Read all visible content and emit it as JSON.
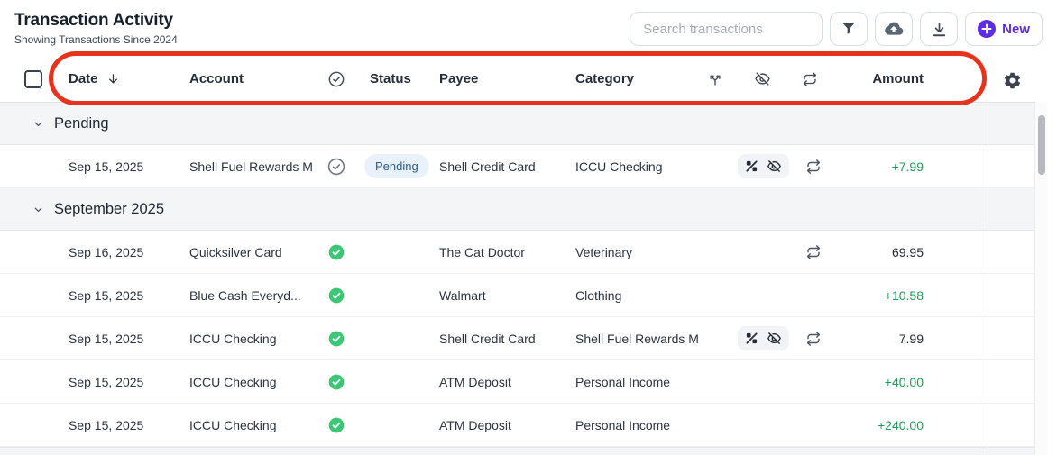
{
  "page": {
    "title": "Transaction Activity",
    "subtitle": "Showing Transactions Since 2024"
  },
  "toolbar": {
    "search_placeholder": "Search transactions",
    "new_label": "New",
    "icon_buttons": [
      "filter-icon",
      "cloud-upload-icon",
      "download-icon"
    ]
  },
  "table": {
    "columns": {
      "date": "Date",
      "account": "Account",
      "status": "Status",
      "payee": "Payee",
      "category": "Category",
      "amount": "Amount"
    },
    "header_icon_columns": [
      "cleared-check-icon",
      "split-icon",
      "eye-off-icon",
      "recurring-icon"
    ],
    "sort": {
      "column": "Date",
      "direction": "descending"
    },
    "groups": [
      {
        "label": "Pending",
        "rows": [
          {
            "date": "Sep 15, 2025",
            "account": "Shell Fuel Rewards M",
            "cleared": false,
            "status": "Pending",
            "payee": "Shell Credit Card",
            "category": "ICCU Checking",
            "badges": true,
            "recurring": true,
            "amount": "+7.99"
          }
        ]
      },
      {
        "label": "September 2025",
        "rows": [
          {
            "date": "Sep 16, 2025",
            "account": "Quicksilver Card",
            "cleared": true,
            "status": "",
            "payee": "The Cat Doctor",
            "category": "Veterinary",
            "badges": false,
            "recurring": true,
            "amount": "69.95"
          },
          {
            "date": "Sep 15, 2025",
            "account": "Blue Cash Everyd...",
            "cleared": true,
            "status": "",
            "payee": "Walmart",
            "category": "Clothing",
            "badges": false,
            "recurring": false,
            "amount": "+10.58"
          },
          {
            "date": "Sep 15, 2025",
            "account": "ICCU Checking",
            "cleared": true,
            "status": "",
            "payee": "Shell Credit Card",
            "category": "Shell Fuel Rewards M",
            "badges": true,
            "recurring": true,
            "amount": "7.99"
          },
          {
            "date": "Sep 15, 2025",
            "account": "ICCU Checking",
            "cleared": true,
            "status": "",
            "payee": "ATM Deposit",
            "category": "Personal Income",
            "badges": false,
            "recurring": false,
            "amount": "+40.00"
          },
          {
            "date": "Sep 15, 2025",
            "account": "ICCU Checking",
            "cleared": true,
            "status": "",
            "payee": "ATM Deposit",
            "category": "Personal Income",
            "badges": false,
            "recurring": false,
            "amount": "+240.00"
          }
        ]
      }
    ]
  },
  "colors": {
    "accent_purple": "#5d2de4",
    "positive_green": "#1d9e58",
    "cleared_check_green": "#3bc874",
    "pending_badge_bg": "#e9f1fb",
    "pending_badge_text": "#2a5c8e",
    "annotation_red": "#e8331c",
    "group_row_bg": "#f3f5f7"
  }
}
